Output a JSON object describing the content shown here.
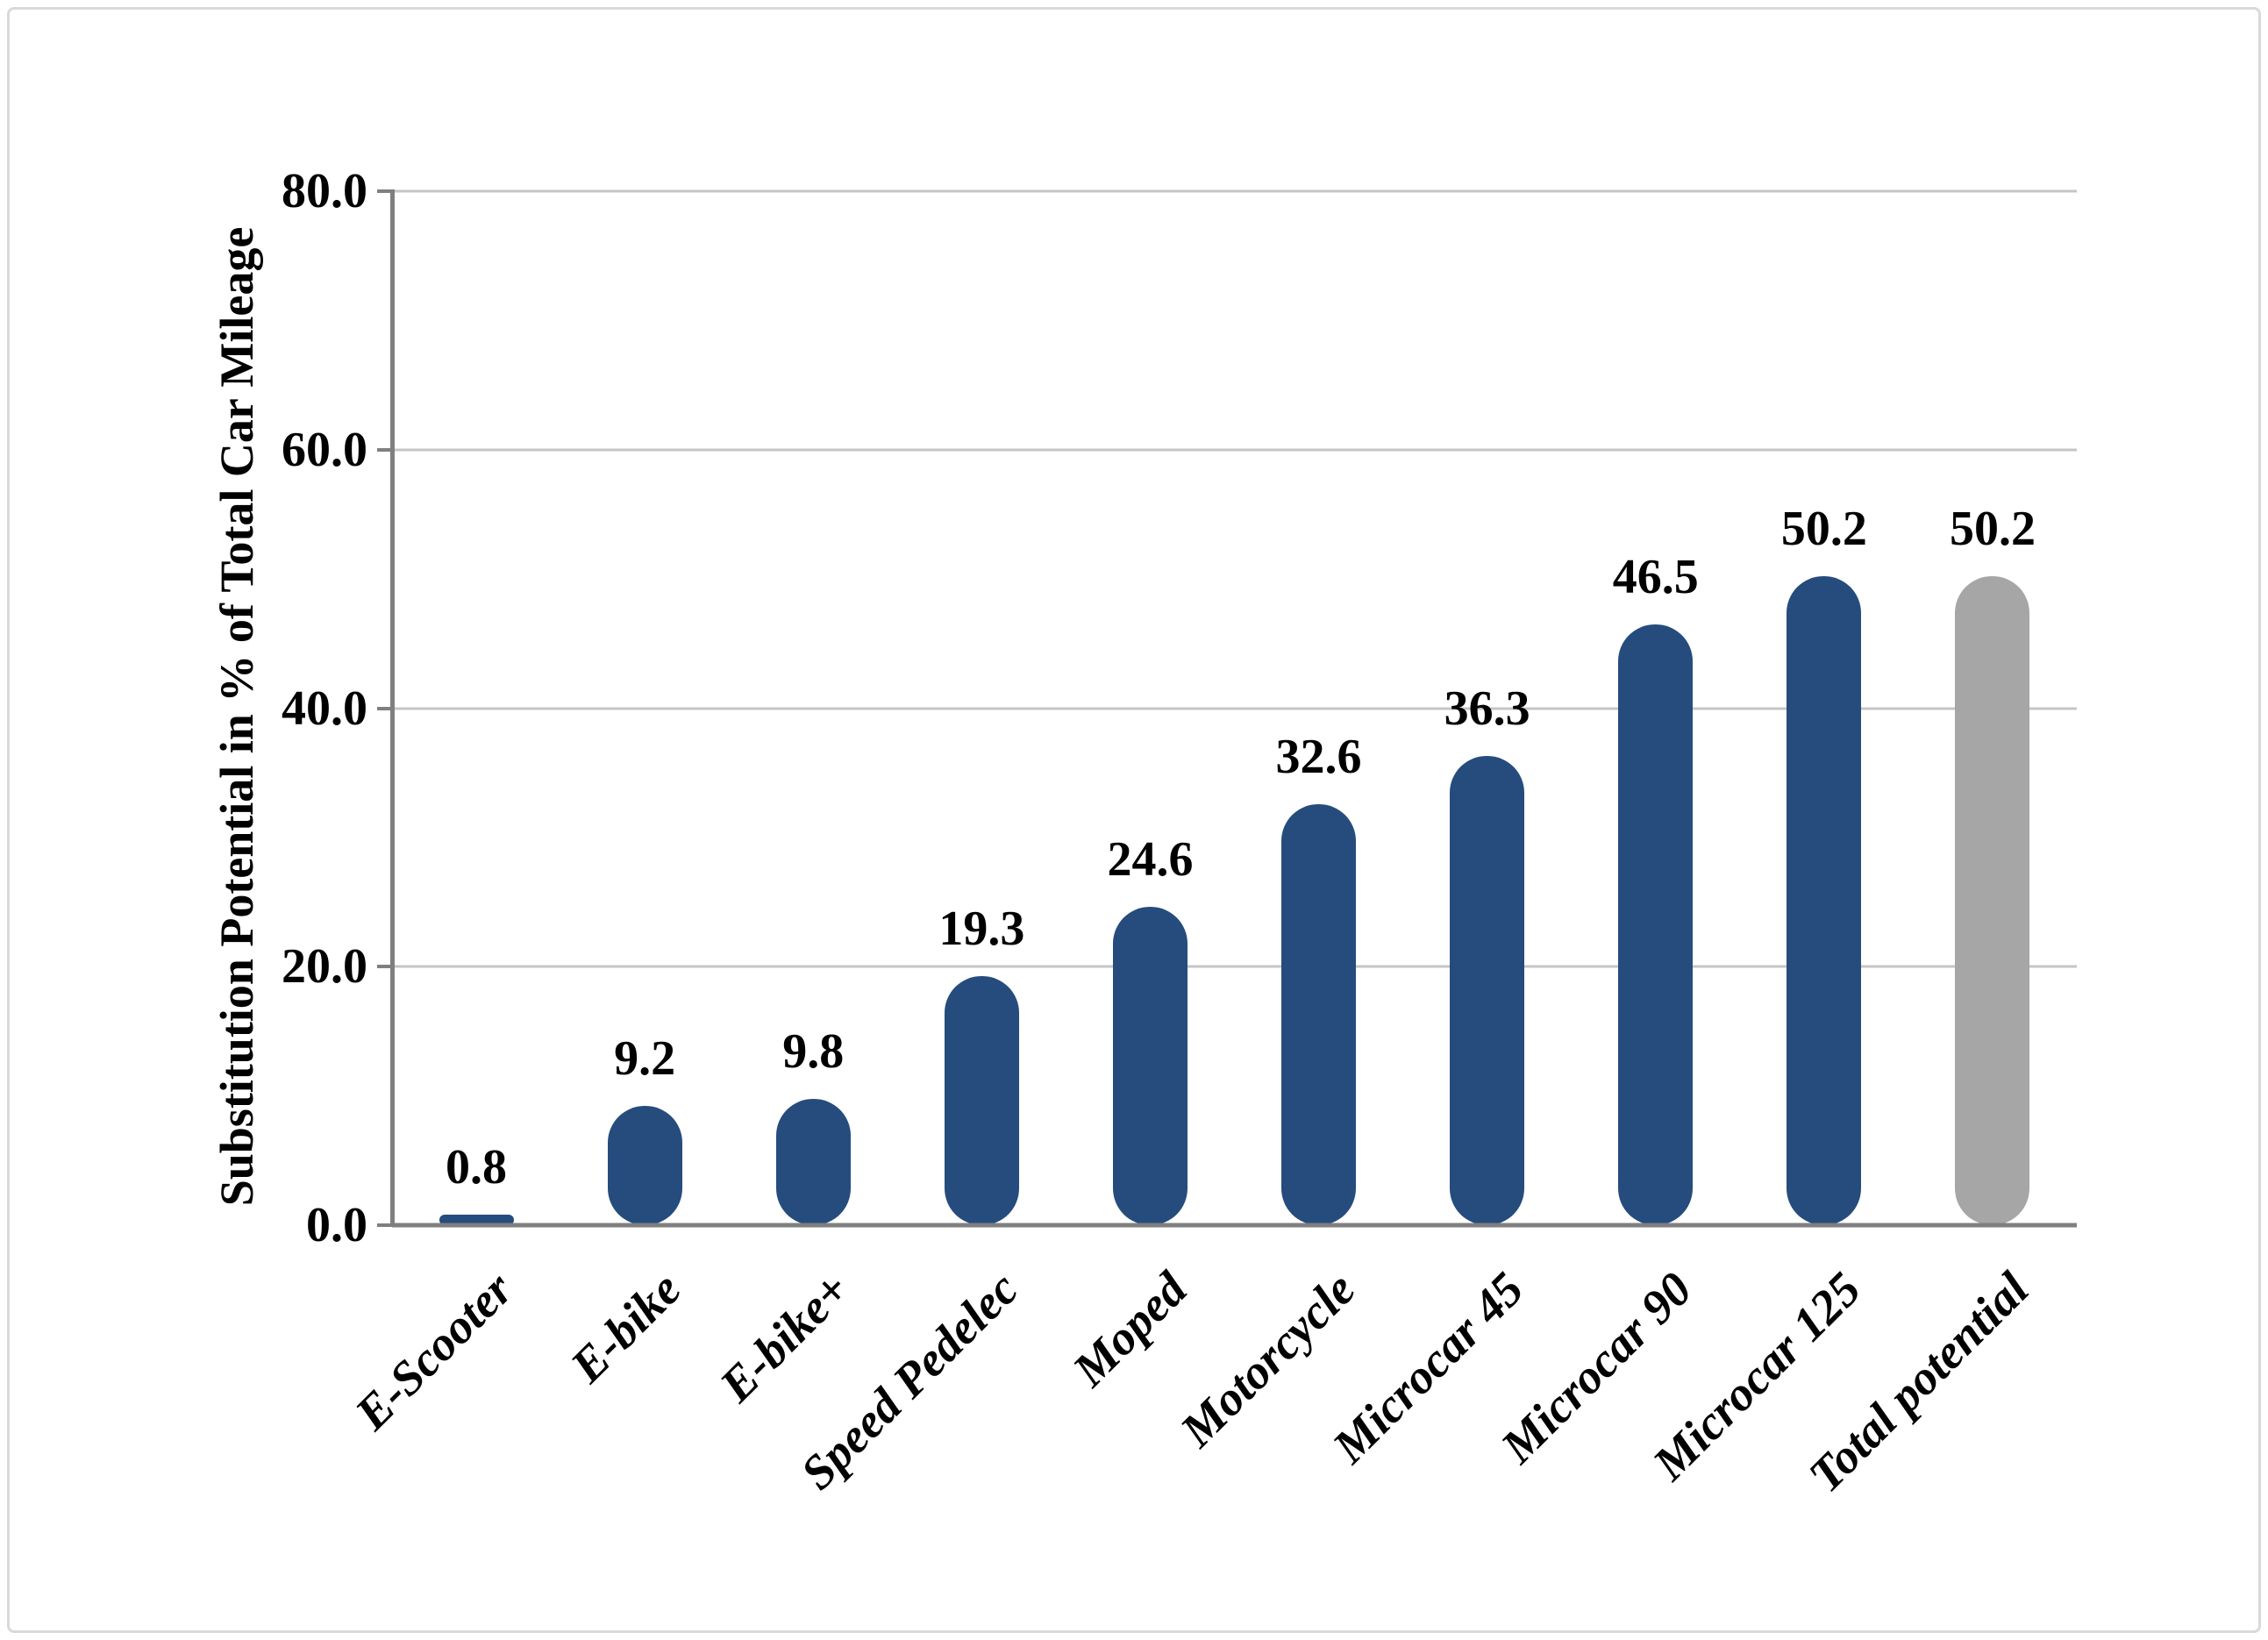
{
  "colors": {
    "bar_blue": "#254C7D",
    "bar_gray": "#A6A6A6",
    "axis_line": "#7F7F7F",
    "gridline": "#C5C5C5",
    "frame_border": "#D9D9D9",
    "text": "#000000",
    "background": "#FFFFFF"
  },
  "chart_data": {
    "type": "bar",
    "title": "",
    "xlabel": "",
    "ylabel": "Substitution Potential in % of Total Car Mileage",
    "categories": [
      "E-Scooter",
      "E-bike",
      "E-bike+",
      "Speed Pedelec",
      "Moped",
      "Motorcycle",
      "Microcar 45",
      "Microcar 90",
      "Microcar 125",
      "Total potential"
    ],
    "values": [
      0.8,
      9.2,
      9.8,
      19.3,
      24.6,
      32.6,
      36.3,
      46.5,
      50.2,
      50.2
    ],
    "value_labels": [
      "0.8",
      "9.2",
      "9.8",
      "19.3",
      "24.6",
      "32.6",
      "36.3",
      "46.5",
      "50.2",
      "50.2"
    ],
    "bar_color_keys": [
      "bar_blue",
      "bar_blue",
      "bar_blue",
      "bar_blue",
      "bar_blue",
      "bar_blue",
      "bar_blue",
      "bar_blue",
      "bar_blue",
      "bar_gray"
    ],
    "bar_shape": "capsule",
    "ylim": [
      0,
      80
    ],
    "yticks": [
      {
        "value": 80,
        "label": "80.0"
      },
      {
        "value": 60,
        "label": "60.0"
      },
      {
        "value": 40,
        "label": "40.0"
      },
      {
        "value": 20,
        "label": "20.0"
      },
      {
        "value": 0,
        "label": "0.0"
      }
    ],
    "grid": true,
    "legend": false,
    "category_label_rotation_deg": -45
  }
}
